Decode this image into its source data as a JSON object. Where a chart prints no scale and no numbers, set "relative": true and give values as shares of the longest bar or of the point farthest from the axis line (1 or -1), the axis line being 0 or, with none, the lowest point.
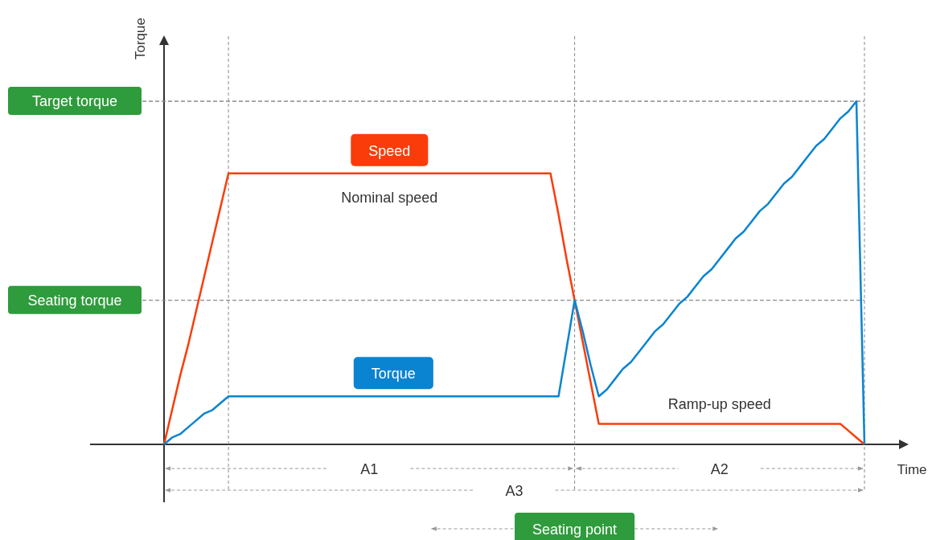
{
  "chart_data": {
    "type": "line",
    "relative": true,
    "xlabel": "Time",
    "grid": "x",
    "ylabel": "Torque",
    "categories": [
      null,
      null,
      null,
      null,
      null,
      null,
      null,
      null,
      null,
      null,
      null,
      null,
      null,
      null,
      null,
      null,
      null,
      null,
      null,
      null,
      null,
      null,
      null,
      null,
      null,
      null,
      null,
      null,
      null,
      null,
      null,
      null,
      null,
      null,
      null,
      null,
      null,
      null,
      null,
      null,
      null,
      null,
      null,
      null,
      null,
      null,
      null,
      null,
      null,
      null,
      null,
      null,
      null,
      null,
      null,
      null,
      null,
      null,
      null,
      null,
      null,
      null,
      null,
      null,
      null,
      null,
      null,
      null,
      null,
      null,
      null,
      null,
      null,
      null,
      null,
      null,
      null,
      null,
      null,
      null,
      null,
      null,
      null,
      null,
      null,
      null,
      null,
      null
    ],
    "series": [
      {
        "name": "Speed",
        "color": "#fa3c0a",
        "values": [
          0,
          0.1,
          0.2,
          0.29,
          0.39,
          0.49,
          0.59,
          0.69,
          0.79,
          0.79,
          0.79,
          0.79,
          0.79,
          0.79,
          0.79,
          0.79,
          0.79,
          0.79,
          0.79,
          0.79,
          0.79,
          0.79,
          0.79,
          0.79,
          0.79,
          0.79,
          0.79,
          0.79,
          0.79,
          0.79,
          0.79,
          0.79,
          0.79,
          0.79,
          0.79,
          0.79,
          0.79,
          0.79,
          0.79,
          0.79,
          0.79,
          0.79,
          0.79,
          0.79,
          0.79,
          0.79,
          0.79,
          0.79,
          0.79,
          0.67,
          0.54,
          0.42,
          0.3,
          0.18,
          0.06,
          0.06,
          0.06,
          0.06,
          0.06,
          0.06,
          0.06,
          0.06,
          0.06,
          0.06,
          0.06,
          0.06,
          0.06,
          0.06,
          0.06,
          0.06,
          0.06,
          0.06,
          0.06,
          0.06,
          0.06,
          0.06,
          0.06,
          0.06,
          0.06,
          0.06,
          0.06,
          0.06,
          0.06,
          0.06,
          0.06,
          0.04,
          0.02,
          0
        ]
      },
      {
        "name": "Torque",
        "color": "#0a84d0",
        "values": [
          0,
          0.02,
          0.03,
          0.05,
          0.07,
          0.09,
          0.1,
          0.12,
          0.14,
          0.14,
          0.14,
          0.14,
          0.14,
          0.14,
          0.14,
          0.14,
          0.14,
          0.14,
          0.14,
          0.14,
          0.14,
          0.14,
          0.14,
          0.14,
          0.14,
          0.14,
          0.14,
          0.14,
          0.14,
          0.14,
          0.14,
          0.14,
          0.14,
          0.14,
          0.14,
          0.14,
          0.14,
          0.14,
          0.14,
          0.14,
          0.14,
          0.14,
          0.14,
          0.14,
          0.14,
          0.14,
          0.14,
          0.14,
          0.14,
          0.14,
          0.28,
          0.42,
          0.33,
          0.23,
          0.14,
          0.16,
          0.19,
          0.22,
          0.24,
          0.27,
          0.3,
          0.33,
          0.35,
          0.38,
          0.41,
          0.43,
          0.46,
          0.49,
          0.51,
          0.54,
          0.57,
          0.6,
          0.62,
          0.65,
          0.68,
          0.7,
          0.73,
          0.76,
          0.78,
          0.81,
          0.84,
          0.87,
          0.89,
          0.92,
          0.95,
          0.97,
          1,
          0
        ]
      }
    ],
    "ref_lines": [
      {
        "axis": "y",
        "value": 1,
        "label": "Target torque"
      },
      {
        "axis": "y",
        "value": 0.42,
        "label": "Seating torque"
      }
    ],
    "annotations": [
      "Nominal speed",
      "Ramp-up speed",
      "A1",
      "A2",
      "A3",
      "Seating point"
    ]
  }
}
